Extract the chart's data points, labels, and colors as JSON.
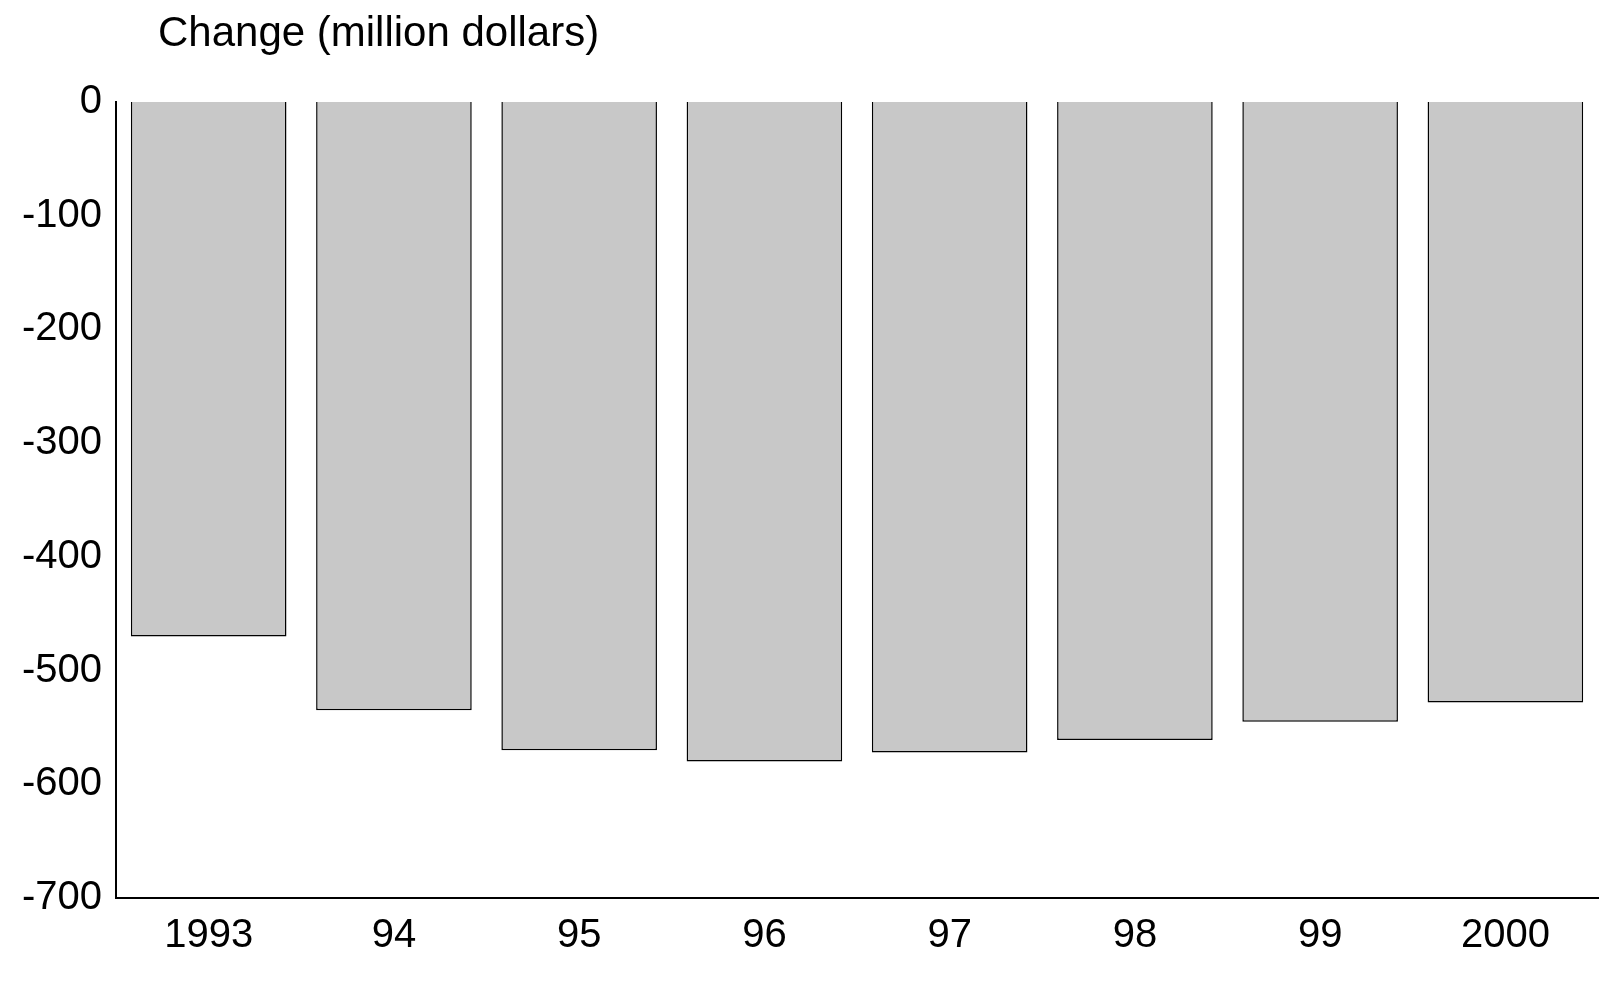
{
  "chart_data": {
    "type": "bar",
    "ylabel": "Change (million dollars)",
    "categories": [
      "1993",
      "94",
      "95",
      "96",
      "97",
      "98",
      "99",
      "2000"
    ],
    "values": [
      -470,
      -535,
      -570,
      -580,
      -572,
      -561,
      -545,
      -528
    ],
    "color": "#c8c8c8",
    "ylim": [
      -700,
      0
    ],
    "yticks": [
      0,
      -100,
      -200,
      -300,
      -400,
      -500,
      -600,
      -700
    ],
    "grid": false,
    "legend": false
  }
}
